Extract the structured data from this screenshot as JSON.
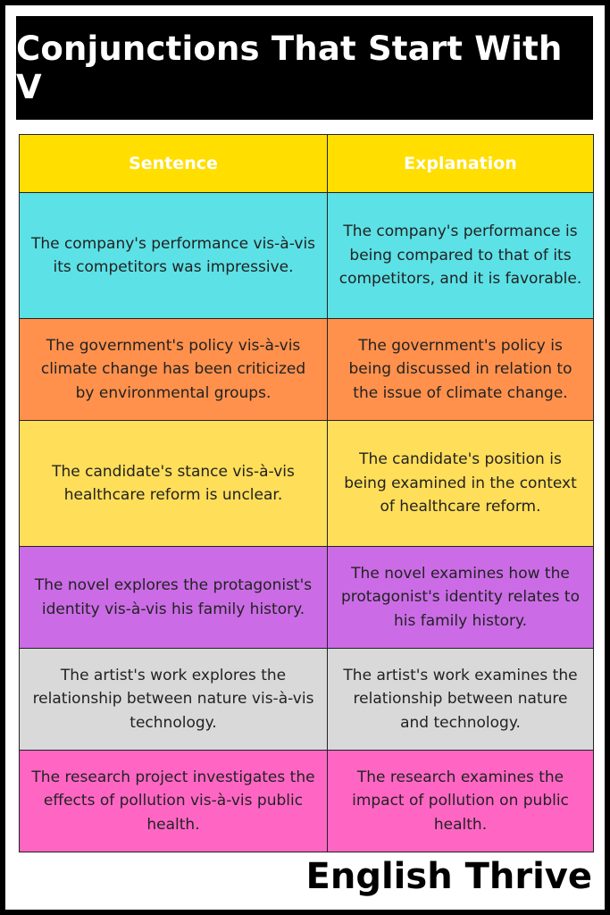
{
  "title": "Conjunctions That Start With V",
  "table": {
    "headers": [
      "Sentence",
      "Explanation"
    ],
    "header_color": "#FFDE00",
    "rows": [
      {
        "sentence": "The company's performance vis-à-vis its competitors was impressive.",
        "explanation": "The company's performance is being compared to that of its competitors, and it is favorable.",
        "color": "#5CE1E6"
      },
      {
        "sentence": "The government's policy vis-à-vis climate change has been criticized by environmental groups.",
        "explanation": "The government's policy is being discussed in relation to the issue of climate change.",
        "color": "#FF914D"
      },
      {
        "sentence": "The candidate's stance vis-à-vis healthcare reform is unclear.",
        "explanation": "The candidate's position is being examined in the context of healthcare reform.",
        "color": "#FFDE59"
      },
      {
        "sentence": "The novel explores the protagonist's identity vis-à-vis his family history.",
        "explanation": "The novel examines how the protagonist's identity relates to his family history.",
        "color": "#CB6CE6"
      },
      {
        "sentence": "The artist's work explores the relationship between nature vis-à-vis technology.",
        "explanation": "The artist's work examines the relationship between nature and technology.",
        "color": "#D9D9D9"
      },
      {
        "sentence": "The research project investigates the effects of pollution vis-à-vis public health.",
        "explanation": "The research examines the impact of pollution on public health.",
        "color": "#FF66C4"
      }
    ]
  },
  "footer": "English Thrive"
}
